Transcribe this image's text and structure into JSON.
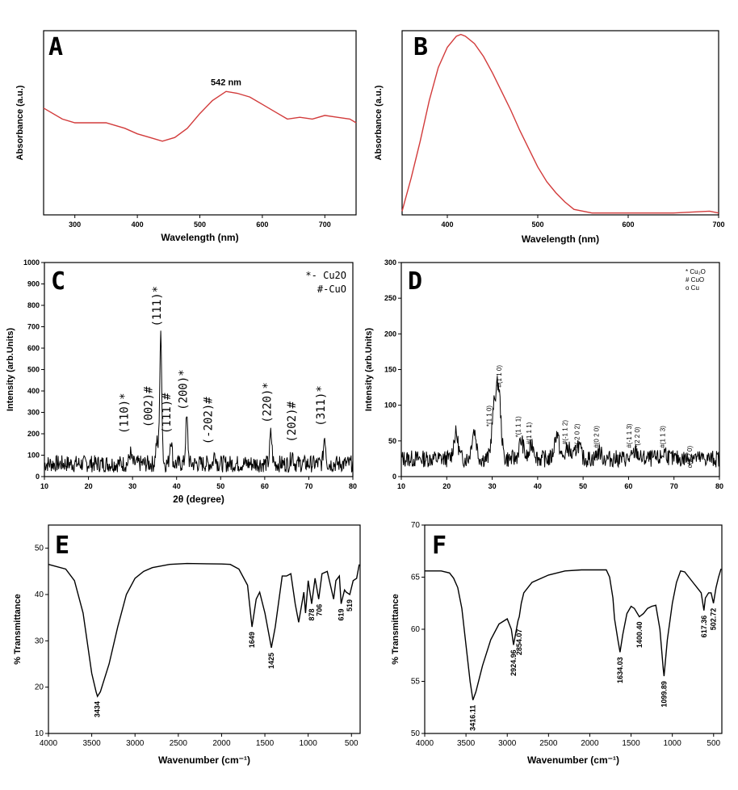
{
  "chart_data": [
    {
      "panel": "A",
      "type": "line",
      "xlabel": "Wavelength (nm)",
      "ylabel": "Absorbance (a.u.)",
      "xlim": [
        250,
        750
      ],
      "ylim": [
        0,
        1
      ],
      "xticks": [
        300,
        400,
        500,
        600,
        700
      ],
      "annotations": [
        {
          "text": "542 nm",
          "x": 542,
          "y": 0.66
        }
      ],
      "series_color": "#d23b3b",
      "x": [
        250,
        280,
        300,
        330,
        350,
        380,
        400,
        420,
        440,
        460,
        480,
        500,
        520,
        542,
        560,
        580,
        600,
        620,
        640,
        660,
        680,
        700,
        720,
        740,
        750
      ],
      "y": [
        0.58,
        0.52,
        0.5,
        0.5,
        0.5,
        0.47,
        0.44,
        0.42,
        0.4,
        0.42,
        0.47,
        0.55,
        0.62,
        0.67,
        0.66,
        0.64,
        0.6,
        0.56,
        0.52,
        0.53,
        0.52,
        0.54,
        0.53,
        0.52,
        0.5
      ]
    },
    {
      "panel": "B",
      "type": "line",
      "xlabel": "Wavelength (nm)",
      "ylabel": "Absorbance (a.u.)",
      "xlim": [
        350,
        700
      ],
      "ylim": [
        0,
        1
      ],
      "xticks": [
        400,
        500,
        600,
        700
      ],
      "series_color": "#d23b3b",
      "x": [
        350,
        360,
        370,
        380,
        390,
        400,
        410,
        415,
        420,
        430,
        440,
        450,
        460,
        470,
        480,
        490,
        500,
        510,
        520,
        530,
        540,
        560,
        580,
        600,
        650,
        690,
        700
      ],
      "y": [
        0.02,
        0.2,
        0.4,
        0.62,
        0.8,
        0.91,
        0.97,
        0.98,
        0.97,
        0.93,
        0.86,
        0.77,
        0.67,
        0.57,
        0.46,
        0.36,
        0.26,
        0.18,
        0.12,
        0.07,
        0.03,
        0.01,
        0.01,
        0.01,
        0.01,
        0.02,
        0.01
      ]
    },
    {
      "panel": "C",
      "type": "line",
      "xlabel": "2θ (degree)",
      "ylabel": "Intensity (arb.Units)",
      "xlim": [
        10,
        80
      ],
      "ylim": [
        0,
        1000
      ],
      "xticks": [
        10,
        20,
        30,
        40,
        50,
        60,
        70,
        80
      ],
      "yticks": [
        0,
        100,
        200,
        300,
        400,
        500,
        600,
        700,
        800,
        900,
        1000
      ],
      "legend": [
        "*- Cu2O",
        "#-CuO"
      ],
      "baseline": 60,
      "noise": 40,
      "peaks": [
        {
          "x": 29.5,
          "y": 110
        },
        {
          "x": 35.5,
          "y": 160
        },
        {
          "x": 36.4,
          "y": 650
        },
        {
          "x": 38.7,
          "y": 180
        },
        {
          "x": 42.3,
          "y": 270
        },
        {
          "x": 48.7,
          "y": 110
        },
        {
          "x": 61.4,
          "y": 200
        },
        {
          "x": 66.2,
          "y": 110
        },
        {
          "x": 73.6,
          "y": 190
        }
      ],
      "peak_labels": [
        {
          "text": "(110)*",
          "x": 29.0,
          "y": 200
        },
        {
          "text": "(002)#",
          "x": 34.5,
          "y": 230
        },
        {
          "text": "(111)*",
          "x": 36.4,
          "y": 700
        },
        {
          "text": "(111)#",
          "x": 38.6,
          "y": 200
        },
        {
          "text": "(200)*",
          "x": 42.3,
          "y": 310
        },
        {
          "text": "(-202)#",
          "x": 48.0,
          "y": 150
        },
        {
          "text": "(220)*",
          "x": 61.4,
          "y": 250
        },
        {
          "text": "(202)#",
          "x": 67.0,
          "y": 160
        },
        {
          "text": "(311)*",
          "x": 73.6,
          "y": 235
        }
      ]
    },
    {
      "panel": "D",
      "type": "line",
      "xlabel": "",
      "ylabel": "Intensity (arb.Units)",
      "xlim": [
        10,
        80
      ],
      "ylim": [
        0,
        300
      ],
      "xticks": [
        10,
        20,
        30,
        40,
        50,
        60,
        70,
        80
      ],
      "yticks": [
        0,
        50,
        100,
        150,
        200,
        250,
        300
      ],
      "legend": [
        "* Cu₂O",
        "# CuO",
        "o Cu"
      ],
      "baseline": 25,
      "noise": 12,
      "peaks": [
        {
          "x": 22,
          "y": 60
        },
        {
          "x": 26,
          "y": 65
        },
        {
          "x": 30.4,
          "y": 90
        },
        {
          "x": 31.4,
          "y": 120
        },
        {
          "x": 36.4,
          "y": 50
        },
        {
          "x": 38.8,
          "y": 45
        },
        {
          "x": 44.2,
          "y": 60
        },
        {
          "x": 46.7,
          "y": 40
        },
        {
          "x": 48.9,
          "y": 45
        },
        {
          "x": 53.5,
          "y": 35
        },
        {
          "x": 61.6,
          "y": 35
        },
        {
          "x": 68.0,
          "y": 35
        },
        {
          "x": 74.0,
          "y": 30
        }
      ],
      "peak_labels": [
        {
          "text": "*(1 1 0)",
          "x": 29.8,
          "y": 70
        },
        {
          "text": "#(1 1 0)",
          "x": 32.0,
          "y": 125
        },
        {
          "text": "*(1 1 1)",
          "x": 36.2,
          "y": 55
        },
        {
          "text": "#(1 1 1)",
          "x": 38.6,
          "y": 45
        },
        {
          "text": "#(-1 1 2)",
          "x": 46.5,
          "y": 45
        },
        {
          "text": "#(-2 0 2)",
          "x": 49.2,
          "y": 40
        },
        {
          "text": "#(0 2 0)",
          "x": 53.4,
          "y": 40
        },
        {
          "text": "#(-1 1 3)",
          "x": 60.6,
          "y": 40
        },
        {
          "text": "*(2 2 0)",
          "x": 62.4,
          "y": 40
        },
        {
          "text": "#(1 1 3)",
          "x": 68.0,
          "y": 40
        },
        {
          "text": "o(2 2 0)",
          "x": 74.0,
          "y": 12
        }
      ]
    },
    {
      "panel": "E",
      "type": "line",
      "xlabel": "Wavenumber (cm⁻¹)",
      "ylabel": "% Transmittance",
      "xlim": [
        4000,
        400
      ],
      "ylim": [
        10,
        55
      ],
      "xticks": [
        4000,
        3500,
        3000,
        2500,
        2000,
        1500,
        1000,
        500
      ],
      "yticks": [
        10,
        20,
        30,
        40,
        50
      ],
      "x": [
        4000,
        3800,
        3700,
        3600,
        3500,
        3450,
        3434,
        3400,
        3300,
        3200,
        3100,
        3000,
        2900,
        2800,
        2600,
        2400,
        2000,
        1900,
        1800,
        1700,
        1649,
        1600,
        1560,
        1500,
        1425,
        1380,
        1300,
        1250,
        1200,
        1150,
        1110,
        1050,
        1030,
        1000,
        960,
        920,
        878,
        840,
        780,
        706,
        680,
        640,
        619,
        580,
        560,
        519,
        480,
        440,
        410
      ],
      "y": [
        46.5,
        45.5,
        43,
        36,
        23,
        19,
        18,
        19,
        25,
        33,
        40,
        43.5,
        45,
        45.8,
        46.5,
        46.7,
        46.6,
        46.5,
        45.5,
        42,
        33,
        39,
        40.5,
        36,
        28.5,
        33,
        44,
        44,
        44.5,
        38,
        34,
        40.5,
        36,
        43,
        38,
        43.5,
        39,
        44.5,
        45,
        39,
        43,
        44,
        38,
        41,
        40.5,
        40,
        43,
        43.5,
        46.5
      ],
      "annotations": [
        {
          "text": "3434",
          "x": 3434,
          "y": 18
        },
        {
          "text": "1649",
          "x": 1649,
          "y": 33
        },
        {
          "text": "1425",
          "x": 1425,
          "y": 28.5
        },
        {
          "text": "878",
          "x": 960,
          "y": 38
        },
        {
          "text": "706",
          "x": 870,
          "y": 39
        },
        {
          "text": "619",
          "x": 619,
          "y": 38
        },
        {
          "text": "519",
          "x": 519,
          "y": 40
        }
      ]
    },
    {
      "panel": "F",
      "type": "line",
      "xlabel": "Wavenumber (cm⁻¹)",
      "ylabel": "% Transmittance",
      "xlim": [
        4000,
        400
      ],
      "ylim": [
        50,
        70
      ],
      "xticks": [
        4000,
        3500,
        3000,
        2500,
        2000,
        1500,
        1000,
        500
      ],
      "yticks": [
        50,
        55,
        60,
        65,
        70
      ],
      "x": [
        4000,
        3800,
        3700,
        3650,
        3600,
        3550,
        3500,
        3450,
        3416,
        3380,
        3300,
        3200,
        3100,
        3000,
        2950,
        2924,
        2900,
        2870,
        2854,
        2830,
        2800,
        2700,
        2500,
        2300,
        2100,
        2000,
        1900,
        1800,
        1760,
        1720,
        1700,
        1660,
        1634,
        1600,
        1550,
        1500,
        1460,
        1400,
        1350,
        1300,
        1250,
        1200,
        1150,
        1110,
        1100,
        1060,
        1000,
        950,
        900,
        850,
        800,
        750,
        700,
        650,
        617,
        600,
        560,
        530,
        502,
        470,
        440,
        410
      ],
      "y": [
        65.6,
        65.6,
        65.4,
        64.9,
        64,
        62,
        58.5,
        55,
        53.2,
        54,
        56.5,
        59,
        60.5,
        61,
        60,
        58.5,
        59.5,
        60.8,
        61.2,
        62.5,
        63.5,
        64.5,
        65.2,
        65.6,
        65.7,
        65.7,
        65.7,
        65.7,
        65,
        63,
        61,
        59,
        57.8,
        59.5,
        61.5,
        62.2,
        62,
        61.2,
        61.5,
        62,
        62.2,
        62.3,
        60,
        56.2,
        55.5,
        59,
        62.5,
        64.5,
        65.6,
        65.5,
        65,
        64.5,
        64,
        63.5,
        61.8,
        63,
        63.5,
        63.5,
        62.5,
        64,
        65,
        65.8
      ],
      "annotations": [
        {
          "text": "3416.11",
          "x": 3416,
          "y": 53.2
        },
        {
          "text": "2924.96",
          "x": 2924,
          "y": 58.5
        },
        {
          "text": "2854.07",
          "x": 2854,
          "y": 60.5
        },
        {
          "text": "1634.03",
          "x": 1634,
          "y": 57.8
        },
        {
          "text": "1400.40",
          "x": 1400,
          "y": 61.2
        },
        {
          "text": "1099.89",
          "x": 1100,
          "y": 55.5
        },
        {
          "text": "617.36",
          "x": 617,
          "y": 61.8
        },
        {
          "text": "502.72",
          "x": 502,
          "y": 62.5
        }
      ]
    }
  ]
}
